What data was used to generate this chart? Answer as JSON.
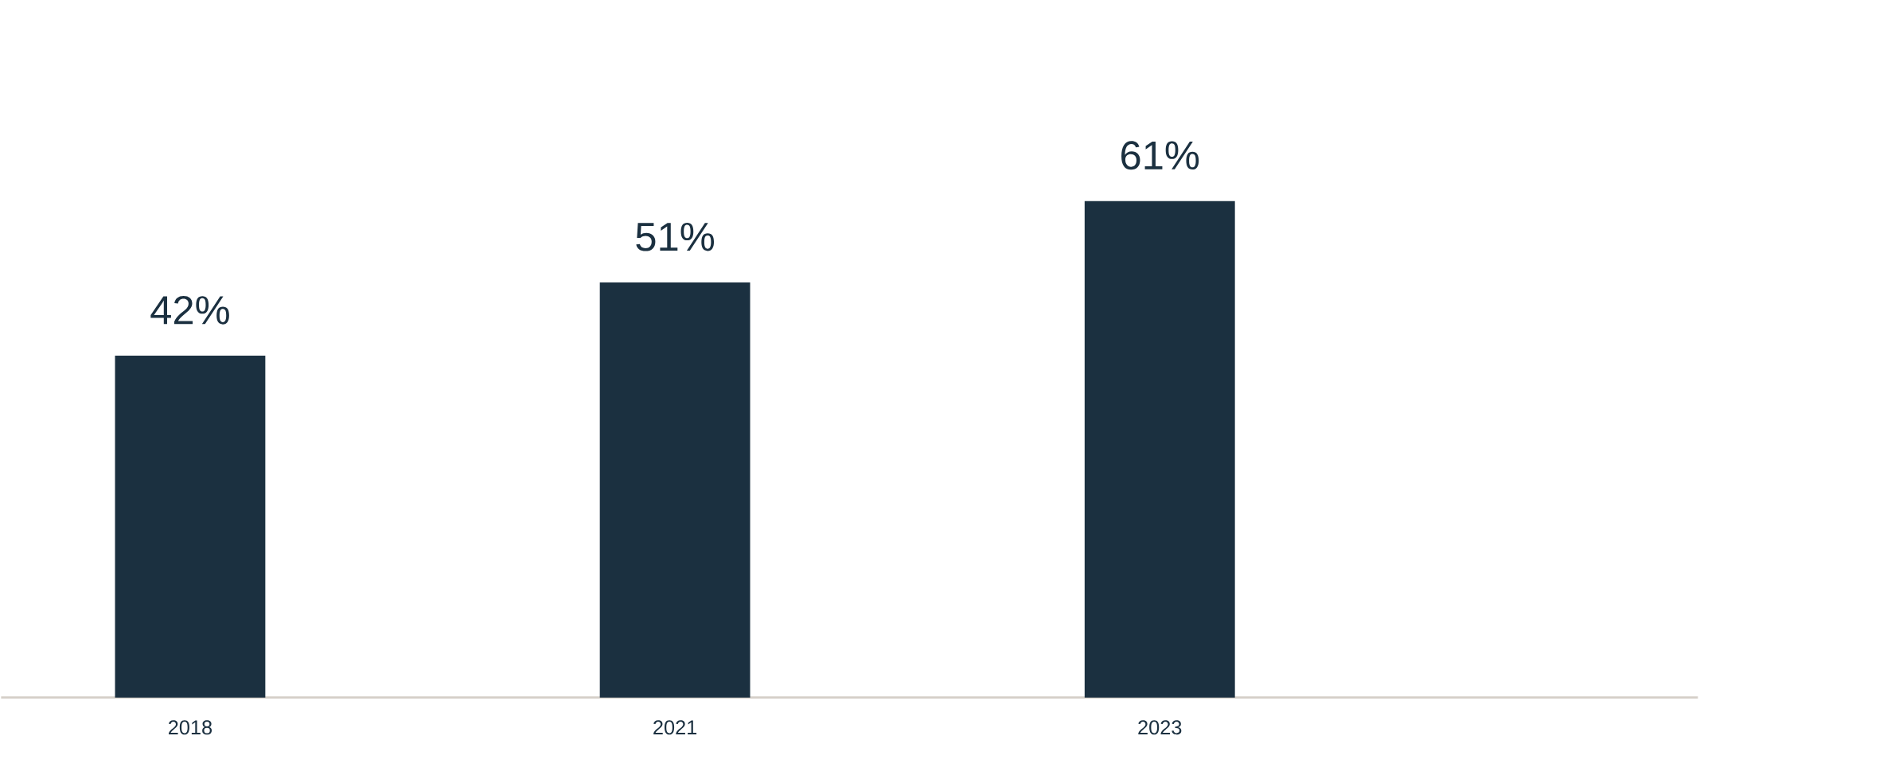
{
  "chart_data": {
    "type": "bar",
    "categories": [
      "2018",
      "2021",
      "2023"
    ],
    "values": [
      42,
      51,
      61
    ],
    "value_labels": [
      "42%",
      "51%",
      "61%"
    ],
    "color": "#1b3040"
  }
}
